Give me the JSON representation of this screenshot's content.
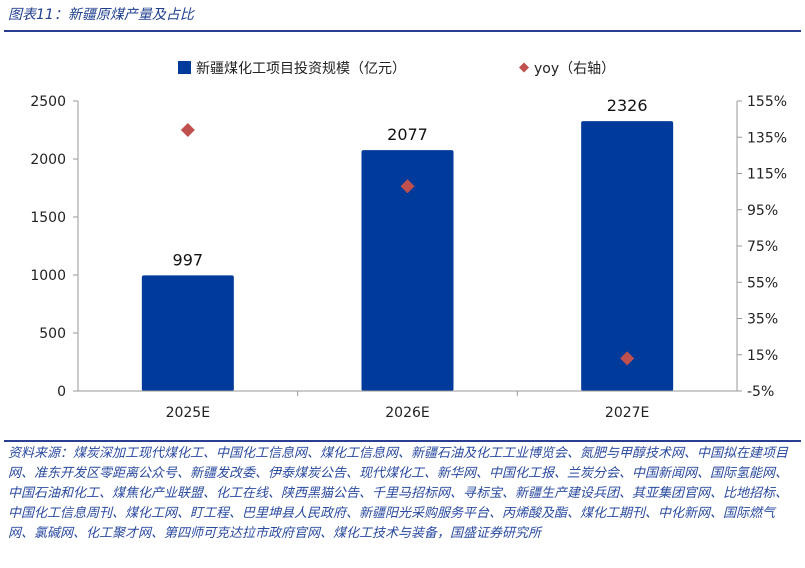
{
  "figure": {
    "title": "图表11：新疆原煤产量及占比",
    "source": "资料来源：煤炭深加工现代煤化工、中国化工信息网、煤化工信息网、新疆石油及化工工业博览会、氮肥与甲醇技术网、中国拟在建项目网、准东开发区零距离公众号、新疆发改委、伊泰煤炭公告、现代煤化工、新华网、中国化工报、兰炭分会、中国新闻网、国际氢能网、中国石油和化工、煤焦化产业联盟、化工在线、陕西黑猫公告、千里马招标网、寻标宝、新疆生产建设兵团、其亚集团官网、比地招标、中国化工信息周刊、煤化工网、盯工程、巴里坤县人民政府、新疆阳光采购服务平台、丙烯酸及酯、煤化工期刊、中化新网、国际燃气网、氯碱网、化工聚才网、第四师可克达拉市政府官网、煤化工技术与装备，国盛证券研究所"
  },
  "chart_data": {
    "type": "bar",
    "title": "",
    "xlabel": "",
    "ylabel": "",
    "categories": [
      "2025E",
      "2026E",
      "2027E"
    ],
    "series": [
      {
        "name": "新疆煤化工项目投资规模（亿元）",
        "kind": "bar",
        "axis": "left",
        "values": [
          997,
          2077,
          2326
        ],
        "data_labels": [
          "997",
          "2077",
          "2326"
        ],
        "color": "#003a9b"
      },
      {
        "name": "yoy（右轴）",
        "kind": "scatter",
        "marker": "diamond",
        "axis": "right",
        "values": [
          139,
          108,
          13
        ],
        "color": "#c0504d"
      }
    ],
    "y_left": {
      "min": 0,
      "max": 2500,
      "ticks": [
        0,
        500,
        1000,
        1500,
        2000,
        2500
      ],
      "tick_labels": [
        "0",
        "500",
        "1000",
        "1500",
        "2000",
        "2500"
      ]
    },
    "y_right": {
      "min": -5,
      "max": 155,
      "ticks": [
        -5,
        15,
        35,
        55,
        75,
        95,
        115,
        135,
        155
      ],
      "tick_labels": [
        "-5%",
        "15%",
        "35%",
        "55%",
        "75%",
        "95%",
        "115%",
        "135%",
        "155%"
      ]
    },
    "grid": false,
    "legend_position": "top"
  }
}
